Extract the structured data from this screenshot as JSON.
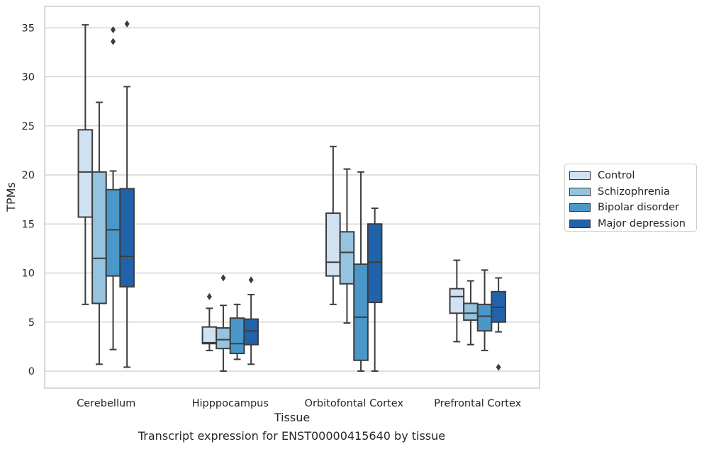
{
  "chart_data": {
    "type": "box",
    "title": "",
    "caption": "Transcript expression for ENST00000415640 by tissue",
    "xlabel": "Tissue",
    "ylabel": "TPMs",
    "ylim": [
      -1.7,
      37.0
    ],
    "yticks": [
      "0",
      "5",
      "10",
      "15",
      "20",
      "25",
      "30",
      "35"
    ],
    "grid": "horizontal",
    "legend_position": "right",
    "categories": [
      "Cerebellum",
      "Hipppocampus",
      "Orbitofontal Cortex",
      "Prefrontal Cortex"
    ],
    "series": [
      {
        "name": "Control",
        "color": "#d0e1f2",
        "boxes": [
          {
            "whisker_low": 6.8,
            "q1": 15.7,
            "median": 20.3,
            "q3": 24.6,
            "whisker_high": 35.3,
            "outliers": []
          },
          {
            "whisker_low": 2.1,
            "q1": 2.8,
            "median": 2.9,
            "q3": 4.5,
            "whisker_high": 6.4,
            "outliers": [
              7.6
            ]
          },
          {
            "whisker_low": 6.8,
            "q1": 9.7,
            "median": 11.1,
            "q3": 16.1,
            "whisker_high": 22.9,
            "outliers": []
          },
          {
            "whisker_low": 3.0,
            "q1": 5.9,
            "median": 7.6,
            "q3": 8.4,
            "whisker_high": 11.3,
            "outliers": []
          }
        ]
      },
      {
        "name": "Schizophrenia",
        "color": "#94c4df",
        "boxes": [
          {
            "whisker_low": 0.7,
            "q1": 6.9,
            "median": 11.5,
            "q3": 20.3,
            "whisker_high": 27.4,
            "outliers": []
          },
          {
            "whisker_low": 0.0,
            "q1": 2.3,
            "median": 3.2,
            "q3": 4.4,
            "whisker_high": 6.7,
            "outliers": [
              9.5
            ]
          },
          {
            "whisker_low": 4.9,
            "q1": 8.9,
            "median": 12.1,
            "q3": 14.2,
            "whisker_high": 20.6,
            "outliers": []
          },
          {
            "whisker_low": 2.7,
            "q1": 5.2,
            "median": 5.9,
            "q3": 6.9,
            "whisker_high": 9.2,
            "outliers": []
          }
        ]
      },
      {
        "name": "Bipolar disorder",
        "color": "#4a98c9",
        "boxes": [
          {
            "whisker_low": 2.2,
            "q1": 9.7,
            "median": 14.4,
            "q3": 18.5,
            "whisker_high": 20.4,
            "outliers": [
              33.6,
              34.8
            ]
          },
          {
            "whisker_low": 1.2,
            "q1": 1.8,
            "median": 2.8,
            "q3": 5.4,
            "whisker_high": 6.8,
            "outliers": []
          },
          {
            "whisker_low": 0.0,
            "q1": 1.1,
            "median": 5.5,
            "q3": 10.9,
            "whisker_high": 20.3,
            "outliers": []
          },
          {
            "whisker_low": 2.1,
            "q1": 4.1,
            "median": 5.6,
            "q3": 6.8,
            "whisker_high": 10.3,
            "outliers": []
          }
        ]
      },
      {
        "name": "Major depression",
        "color": "#2163aa",
        "boxes": [
          {
            "whisker_low": 0.4,
            "q1": 8.6,
            "median": 11.7,
            "q3": 18.6,
            "whisker_high": 29.0,
            "outliers": [
              35.4
            ]
          },
          {
            "whisker_low": 0.7,
            "q1": 2.7,
            "median": 4.1,
            "q3": 5.3,
            "whisker_high": 7.8,
            "outliers": [
              9.3
            ]
          },
          {
            "whisker_low": 0.0,
            "q1": 7.0,
            "median": 11.1,
            "q3": 15.0,
            "whisker_high": 16.6,
            "outliers": []
          },
          {
            "whisker_low": 4.0,
            "q1": 5.0,
            "median": 6.5,
            "q3": 8.1,
            "whisker_high": 9.5,
            "outliers": [
              0.4
            ]
          }
        ]
      }
    ]
  }
}
